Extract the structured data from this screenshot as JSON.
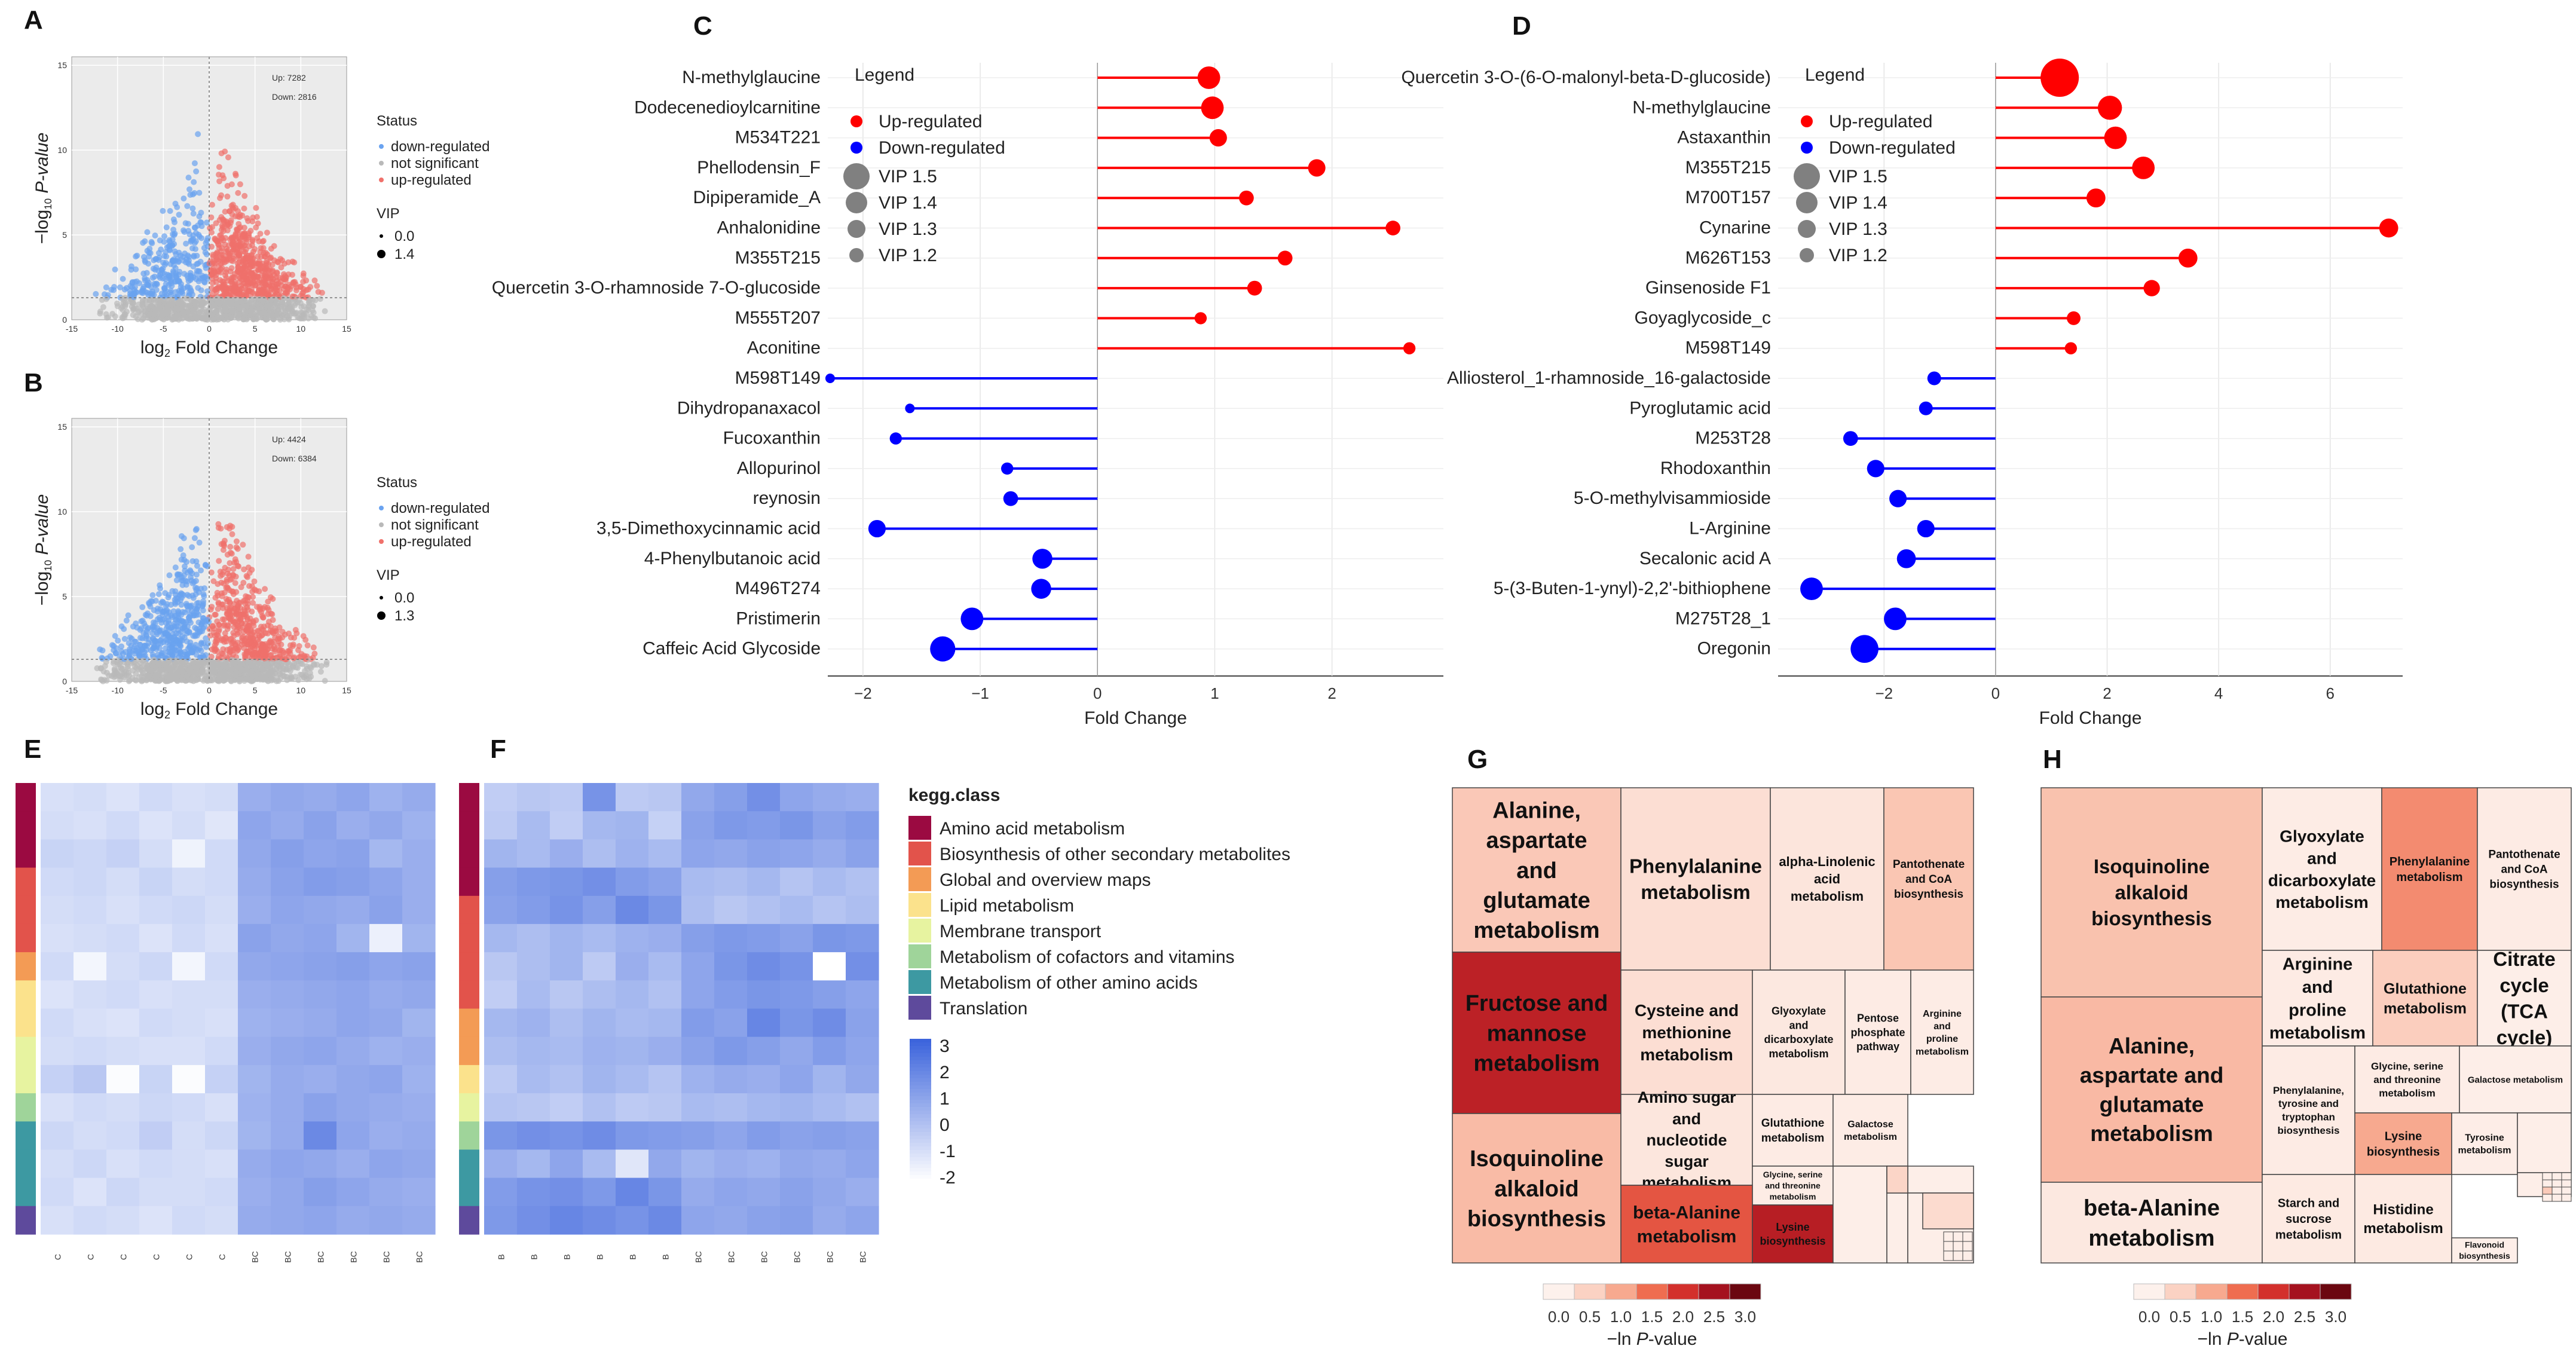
{
  "panel_labels": [
    "A",
    "B",
    "C",
    "D",
    "E",
    "F",
    "G",
    "H"
  ],
  "volcano_legend": {
    "status_title": "Status",
    "items": [
      "down-regulated",
      "not significant",
      "up-regulated"
    ],
    "vip_title": "VIP",
    "colors": {
      "down": "#6aa3f0",
      "ns": "#b9b9b9",
      "up": "#f0716b"
    }
  },
  "panel_A": {
    "up_text": "Up: 7282",
    "down_text": "Down: 2816",
    "vip_values": [
      "0.0",
      "1.4"
    ],
    "xticks": [
      "-15",
      "-10",
      "-5",
      "0",
      "5",
      "10",
      "15"
    ],
    "yticks": [
      "0",
      "5",
      "10",
      "15"
    ],
    "xlabel_prefix": "log",
    "xlabel_sub": "2",
    "xlabel_suffix": " Fold Change",
    "ylabel_prefix": "−log",
    "ylabel_sub": "10",
    "ylabel_suffix": " P-value"
  },
  "panel_B": {
    "up_text": "Up: 4424",
    "down_text": "Down: 6384",
    "vip_values": [
      "0.0",
      "1.3"
    ],
    "xticks": [
      "-15",
      "-10",
      "-5",
      "0",
      "5",
      "10",
      "15"
    ],
    "yticks": [
      "0",
      "5",
      "10",
      "15"
    ],
    "xlabel_prefix": "log",
    "xlabel_sub": "2",
    "xlabel_suffix": " Fold Change",
    "ylabel_prefix": "−log",
    "ylabel_sub": "10",
    "ylabel_suffix": " P-value"
  },
  "lollipop_legend": {
    "title": "Legend",
    "up": "Up-regulated",
    "down": "Down-regulated",
    "vip": [
      "VIP 1.5",
      "VIP 1.4",
      "VIP 1.3",
      "VIP 1.2"
    ],
    "up_color": "#ff0000",
    "down_color": "#0000ff",
    "vip_color": "#808080"
  },
  "chart_data": [
    {
      "type": "lollipop",
      "panel": "C",
      "xlabel": "Fold Change",
      "xlim": [
        -2.3,
        2.95
      ],
      "xticks": [
        -2,
        -1,
        0,
        1,
        2
      ],
      "items": [
        {
          "name": "N-methylglaucine",
          "value": 0.95,
          "size": 1.45
        },
        {
          "name": "Dodecenedioylcarnitine",
          "value": 0.98,
          "size": 1.45
        },
        {
          "name": "M534T221",
          "value": 1.03,
          "size": 1.35
        },
        {
          "name": "Phellodensin_F",
          "value": 1.87,
          "size": 1.35
        },
        {
          "name": "Dipiperamide_A",
          "value": 1.27,
          "size": 1.3
        },
        {
          "name": "Anhalonidine",
          "value": 2.52,
          "size": 1.3
        },
        {
          "name": "M355T215",
          "value": 1.6,
          "size": 1.3
        },
        {
          "name": "Quercetin 3-O-rhamnoside 7-O-glucoside",
          "value": 1.34,
          "size": 1.3
        },
        {
          "name": "M555T207",
          "value": 0.88,
          "size": 1.25
        },
        {
          "name": "Aconitine",
          "value": 2.66,
          "size": 1.25
        },
        {
          "name": "M598T149",
          "value": -2.28,
          "size": 1.2
        },
        {
          "name": "Dihydropanaxacol",
          "value": -1.6,
          "size": 1.2
        },
        {
          "name": "Fucoxanthin",
          "value": -1.72,
          "size": 1.25
        },
        {
          "name": "Allopurinol",
          "value": -0.77,
          "size": 1.25
        },
        {
          "name": "reynosin",
          "value": -0.74,
          "size": 1.3
        },
        {
          "name": "3,5-Dimethoxycinnamic acid",
          "value": -1.88,
          "size": 1.35
        },
        {
          "name": "4-Phenylbutanoic acid",
          "value": -0.47,
          "size": 1.4
        },
        {
          "name": "M496T274",
          "value": -0.48,
          "size": 1.4
        },
        {
          "name": "Pristimerin",
          "value": -1.07,
          "size": 1.45
        },
        {
          "name": "Caffeic Acid Glycoside",
          "value": -1.32,
          "size": 1.5
        }
      ]
    },
    {
      "type": "lollipop",
      "panel": "D",
      "xlabel": "Fold Change",
      "xlim": [
        -3.9,
        7.3
      ],
      "xticks": [
        -2,
        0,
        2,
        4,
        6
      ],
      "items": [
        {
          "name": "Quercetin 3-O-(6-O-malonyl-beta-D-glucoside)",
          "value": 1.15,
          "size": 1.75
        },
        {
          "name": "N-methylglaucine",
          "value": 2.05,
          "size": 1.48
        },
        {
          "name": "Astaxanthin",
          "value": 2.15,
          "size": 1.45
        },
        {
          "name": "M355T215",
          "value": 2.65,
          "size": 1.45
        },
        {
          "name": "M700T157",
          "value": 1.8,
          "size": 1.38
        },
        {
          "name": "Cynarine",
          "value": 7.05,
          "size": 1.38
        },
        {
          "name": "M626T153",
          "value": 3.45,
          "size": 1.38
        },
        {
          "name": "Ginsenoside F1",
          "value": 2.8,
          "size": 1.33
        },
        {
          "name": "Goyaglycoside_c",
          "value": 1.4,
          "size": 1.28
        },
        {
          "name": "M598T149",
          "value": 1.35,
          "size": 1.25
        },
        {
          "name": "Alliosterol_1-rhamnoside_16-galactoside",
          "value": -1.1,
          "size": 1.28
        },
        {
          "name": "Pyroglutamic acid",
          "value": -1.25,
          "size": 1.28
        },
        {
          "name": "M253T28",
          "value": -2.6,
          "size": 1.3
        },
        {
          "name": "Rhodoxanthin",
          "value": -2.15,
          "size": 1.35
        },
        {
          "name": "5-O-methylvisammioside",
          "value": -1.75,
          "size": 1.35
        },
        {
          "name": "L-Arginine",
          "value": -1.25,
          "size": 1.35
        },
        {
          "name": "Secalonic acid A",
          "value": -1.6,
          "size": 1.38
        },
        {
          "name": "5-(3-Buten-1-ynyl)-2,2'-bithiophene",
          "value": -3.3,
          "size": 1.45
        },
        {
          "name": "M275T28_1",
          "value": -1.8,
          "size": 1.45
        },
        {
          "name": "Oregonin",
          "value": -2.35,
          "size": 1.55
        }
      ]
    },
    {
      "type": "heatmap",
      "panel": "E",
      "columns": [
        "C",
        "C",
        "C",
        "C",
        "C",
        "C",
        "BC",
        "BC",
        "BC",
        "BC",
        "BC",
        "BC"
      ],
      "row_classes": [
        0,
        0,
        0,
        1,
        1,
        1,
        2,
        3,
        3,
        4,
        4,
        5,
        6,
        6,
        6,
        7
      ],
      "values": [
        [
          -1.0,
          -0.9,
          -1.1,
          -0.8,
          -1.0,
          -0.9,
          0.6,
          0.8,
          0.7,
          0.9,
          0.5,
          0.7
        ],
        [
          -0.9,
          -1.0,
          -0.8,
          -1.1,
          -0.9,
          -1.2,
          0.9,
          0.7,
          1.0,
          0.6,
          0.8,
          0.5
        ],
        [
          -0.6,
          -0.7,
          -0.5,
          -0.9,
          -1.6,
          -0.8,
          0.8,
          1.1,
          0.9,
          1.0,
          0.3,
          0.6
        ],
        [
          -0.8,
          -0.7,
          -0.9,
          -0.6,
          -0.9,
          -0.8,
          0.7,
          1.0,
          1.2,
          1.1,
          0.9,
          0.6
        ],
        [
          -0.9,
          -0.8,
          -1.0,
          -0.8,
          -0.7,
          -0.9,
          0.6,
          0.9,
          0.8,
          0.7,
          1.0,
          0.6
        ],
        [
          -1.0,
          -0.9,
          -0.8,
          -1.1,
          -0.8,
          -1.0,
          1.0,
          0.8,
          0.9,
          0.4,
          -1.5,
          0.4
        ],
        [
          -0.8,
          -1.7,
          -0.9,
          -0.7,
          -1.7,
          -0.8,
          0.8,
          0.9,
          1.0,
          1.1,
          0.9,
          1.0
        ],
        [
          -1.1,
          -0.9,
          -0.8,
          -1.0,
          -0.9,
          -0.9,
          0.6,
          0.7,
          0.8,
          0.9,
          0.7,
          0.8
        ],
        [
          -0.8,
          -1.0,
          -1.1,
          -0.8,
          -0.9,
          -1.0,
          0.5,
          0.6,
          0.7,
          0.9,
          0.8,
          0.4
        ],
        [
          -0.9,
          -0.8,
          -0.9,
          -1.0,
          -1.0,
          -0.8,
          0.6,
          0.8,
          0.9,
          0.7,
          0.5,
          0.6
        ],
        [
          -0.5,
          -0.2,
          -1.9,
          -0.6,
          -1.9,
          -0.5,
          0.4,
          0.7,
          0.6,
          0.8,
          0.9,
          0.5
        ],
        [
          -1.0,
          -0.8,
          -0.9,
          -0.7,
          -0.8,
          -1.0,
          0.5,
          0.7,
          1.0,
          0.8,
          0.7,
          0.6
        ],
        [
          -0.7,
          -0.9,
          -0.8,
          -0.4,
          -0.9,
          -0.7,
          0.4,
          0.7,
          1.8,
          0.9,
          0.6,
          0.7
        ],
        [
          -0.9,
          -0.7,
          -1.0,
          -0.8,
          -0.9,
          -1.0,
          0.7,
          0.9,
          0.8,
          0.6,
          0.9,
          0.8
        ],
        [
          -0.8,
          -1.1,
          -0.7,
          -0.9,
          -0.9,
          -0.8,
          0.6,
          0.8,
          1.1,
          0.9,
          0.7,
          0.6
        ],
        [
          -1.0,
          -0.8,
          -0.9,
          -1.1,
          -0.8,
          -0.9,
          0.7,
          0.8,
          0.9,
          0.7,
          0.8,
          0.7
        ]
      ]
    },
    {
      "type": "heatmap",
      "panel": "F",
      "columns": [
        "B",
        "B",
        "B",
        "B",
        "B",
        "B",
        "BC",
        "BC",
        "BC",
        "BC",
        "BC",
        "BC"
      ],
      "row_classes": [
        0,
        0,
        0,
        0,
        1,
        1,
        1,
        1,
        2,
        2,
        3,
        4,
        5,
        6,
        6,
        7
      ],
      "values": [
        [
          -0.4,
          -0.2,
          -0.3,
          1.5,
          -0.3,
          -0.2,
          0.8,
          1.1,
          1.6,
          0.9,
          0.7,
          0.6
        ],
        [
          -0.3,
          0.2,
          -0.4,
          0.3,
          0.4,
          -0.5,
          1.0,
          1.3,
          1.2,
          1.4,
          1.0,
          1.2
        ],
        [
          0.4,
          0.2,
          0.6,
          0.1,
          0.5,
          0.2,
          0.9,
          0.8,
          1.0,
          0.9,
          0.7,
          1.0
        ],
        [
          1.1,
          1.3,
          1.4,
          1.6,
          1.2,
          1.0,
          0.2,
          0.1,
          0.3,
          -0.1,
          0.2,
          0.0
        ],
        [
          1.0,
          1.2,
          1.5,
          1.1,
          1.8,
          1.4,
          0.1,
          -0.2,
          0.0,
          0.2,
          -0.1,
          0.1
        ],
        [
          0.3,
          0.1,
          0.4,
          0.2,
          0.5,
          0.6,
          1.1,
          1.3,
          1.2,
          1.0,
          1.4,
          1.3
        ],
        [
          -0.2,
          0.1,
          0.4,
          -0.3,
          0.6,
          0.2,
          0.9,
          1.4,
          1.7,
          1.5,
          -2.0,
          1.6
        ],
        [
          -0.4,
          0.2,
          -0.2,
          0.1,
          0.3,
          0.0,
          0.9,
          1.2,
          1.4,
          1.3,
          1.1,
          0.9
        ],
        [
          0.3,
          0.5,
          0.1,
          0.4,
          0.2,
          0.3,
          1.2,
          1.0,
          1.9,
          1.4,
          1.7,
          1.0
        ],
        [
          0.1,
          0.3,
          0.2,
          0.5,
          0.4,
          0.6,
          1.0,
          1.3,
          1.1,
          0.8,
          1.2,
          0.9
        ],
        [
          -0.3,
          0.2,
          0.0,
          0.4,
          0.2,
          -0.1,
          0.5,
          0.7,
          0.6,
          0.9,
          0.4,
          0.8
        ],
        [
          -0.1,
          -0.2,
          -0.4,
          0.0,
          -0.3,
          -0.2,
          0.2,
          0.1,
          0.3,
          0.4,
          0.2,
          0.0
        ],
        [
          1.4,
          1.6,
          1.5,
          1.7,
          1.3,
          1.2,
          1.1,
          0.9,
          1.2,
          1.0,
          1.1,
          1.0
        ],
        [
          0.6,
          0.3,
          0.9,
          0.2,
          -1.2,
          0.8,
          0.4,
          0.6,
          0.5,
          0.8,
          0.7,
          0.9
        ],
        [
          1.2,
          1.5,
          1.6,
          1.3,
          1.9,
          1.4,
          0.7,
          0.9,
          0.8,
          1.0,
          0.8,
          0.6
        ],
        [
          1.3,
          1.6,
          1.9,
          1.7,
          1.5,
          1.8,
          0.9,
          0.8,
          1.0,
          1.1,
          0.7,
          0.9
        ]
      ]
    },
    {
      "type": "treemap",
      "panel": "G",
      "tiles": [
        {
          "label": "Alanine, aspartate and glutamate metabolism",
          "value": 0.62
        },
        {
          "label": "Fructose and mannose metabolism",
          "value": 2.25
        },
        {
          "label": "Isoquinoline alkaloid biosynthesis",
          "value": 0.78
        },
        {
          "label": "Phenylalanine metabolism",
          "value": 0.3
        },
        {
          "label": "alpha-Linolenic acid metabolism",
          "value": 0.2
        },
        {
          "label": "Pantothenate and CoA biosynthesis",
          "value": 0.65
        },
        {
          "label": "Cysteine and methionine metabolism",
          "value": 0.3
        },
        {
          "label": "Glyoxylate and dicarboxylate metabolism",
          "value": 0.15
        },
        {
          "label": "Pentose phosphate pathway",
          "value": 0.1
        },
        {
          "label": "Arginine and proline metabolism",
          "value": 0.08
        },
        {
          "label": "Amino sugar and nucleotide sugar metabolism",
          "value": 0.18
        },
        {
          "label": "Glutathione metabolism",
          "value": 0.1
        },
        {
          "label": "Galactose metabolism",
          "value": 0.08
        },
        {
          "label": "Glycine, serine and threonine metabolism",
          "value": 0.08
        },
        {
          "label": "beta-Alanine metabolism",
          "value": 1.7
        },
        {
          "label": "Lysine biosynthesis",
          "value": 2.3
        }
      ]
    },
    {
      "type": "treemap",
      "panel": "H",
      "tiles": [
        {
          "label": "Isoquinoline alkaloid biosynthesis",
          "value": 0.7
        },
        {
          "label": "Alanine, aspartate and glutamate metabolism",
          "value": 0.8
        },
        {
          "label": "beta-Alanine metabolism",
          "value": 0.15
        },
        {
          "label": "Glyoxylate and dicarboxylate metabolism",
          "value": 0.08
        },
        {
          "label": "Phenylalanine metabolism",
          "value": 1.25
        },
        {
          "label": "Pantothenate and CoA biosynthesis",
          "value": 0.1
        },
        {
          "label": "Arginine and proline metabolism",
          "value": 0.1
        },
        {
          "label": "Glutathione metabolism",
          "value": 0.55
        },
        {
          "label": "Citrate cycle (TCA cycle)",
          "value": 0.05
        },
        {
          "label": "Phenylalanine, tyrosine and tryptophan biosynthesis",
          "value": 0.1
        },
        {
          "label": "Glycine, serine and threonine metabolism",
          "value": 0.1
        },
        {
          "label": "Galactose metabolism",
          "value": 0.05
        },
        {
          "label": "Lysine biosynthesis",
          "value": 1.0
        },
        {
          "label": "Tyrosine metabolism",
          "value": 0.06
        },
        {
          "label": "Starch and sucrose metabolism",
          "value": 0.12
        },
        {
          "label": "Histidine metabolism",
          "value": 0.12
        },
        {
          "label": "Flavonoid biosynthesis",
          "value": 0.05
        }
      ]
    }
  ],
  "kegg_legend": {
    "title": "kegg.class",
    "items": [
      {
        "label": "Amino acid metabolism",
        "color": "#9b0a41"
      },
      {
        "label": "Biosynthesis of other secondary metabolites",
        "color": "#e2534b"
      },
      {
        "label": "Global and overview maps",
        "color": "#f39b55"
      },
      {
        "label": "Lipid metabolism",
        "color": "#fbe28c"
      },
      {
        "label": "Membrane transport",
        "color": "#e7f3a0"
      },
      {
        "label": "Metabolism of cofactors and vitamins",
        "color": "#9fd49a"
      },
      {
        "label": "Metabolism of other amino acids",
        "color": "#3d99a2"
      },
      {
        "label": "Translation",
        "color": "#5e4a9c"
      }
    ]
  },
  "heat_scale": {
    "ticks": [
      "3",
      "2",
      "1",
      "0",
      "-1",
      "-2"
    ],
    "low": "#ffffff",
    "high": "#3c64dc"
  },
  "pvalue_scale": {
    "ticks": [
      "0.0",
      "0.5",
      "1.0",
      "1.5",
      "2.0",
      "2.5",
      "3.0"
    ],
    "colors": [
      "#fdf1ec",
      "#fbd2c3",
      "#f7a98f",
      "#ef6d50",
      "#d3302c",
      "#a5121f",
      "#6b0710"
    ],
    "label_prefix": "−ln ",
    "label_italic": "P",
    "label_suffix": "-value"
  }
}
